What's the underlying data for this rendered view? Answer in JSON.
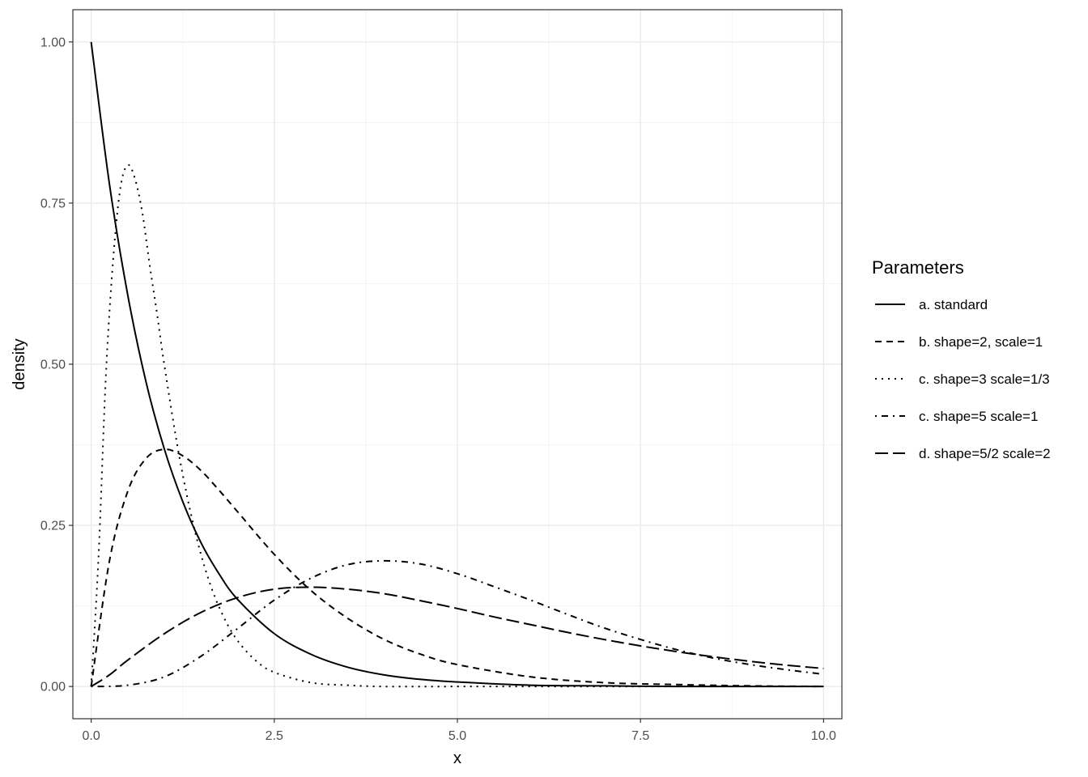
{
  "chart_data": {
    "type": "line",
    "xlabel": "x",
    "ylabel": "density",
    "xlim": [
      -0.25,
      10.25
    ],
    "ylim": [
      -0.05,
      1.05
    ],
    "x_ticks": [
      {
        "value": 0,
        "label": "0.0"
      },
      {
        "value": 2.5,
        "label": "2.5"
      },
      {
        "value": 5,
        "label": "5.0"
      },
      {
        "value": 7.5,
        "label": "7.5"
      },
      {
        "value": 10,
        "label": "10.0"
      }
    ],
    "y_ticks": [
      {
        "value": 0,
        "label": "0.00"
      },
      {
        "value": 0.25,
        "label": "0.25"
      },
      {
        "value": 0.5,
        "label": "0.50"
      },
      {
        "value": 0.75,
        "label": "0.75"
      },
      {
        "value": 1,
        "label": "1.00"
      }
    ],
    "grid": true,
    "legend": {
      "title": "Parameters",
      "placement": "right"
    },
    "series": [
      {
        "name": "a. standard",
        "linetype": "solid",
        "x": [
          0,
          0.25,
          0.5,
          0.75,
          1,
          1.25,
          1.5,
          1.75,
          2,
          2.5,
          3,
          3.5,
          4,
          4.5,
          5,
          6,
          7,
          8,
          9,
          10
        ],
        "y": [
          1.0,
          0.779,
          0.607,
          0.472,
          0.368,
          0.287,
          0.223,
          0.174,
          0.135,
          0.082,
          0.05,
          0.03,
          0.018,
          0.011,
          0.007,
          0.002,
          0.001,
          0.0,
          0.0,
          0.0
        ]
      },
      {
        "name": "b. shape=2, scale=1",
        "linetype": "dashed",
        "x": [
          0,
          0.25,
          0.5,
          0.75,
          1,
          1.25,
          1.5,
          1.75,
          2,
          2.5,
          3,
          3.5,
          4,
          4.5,
          5,
          6,
          7,
          8,
          9,
          10
        ],
        "y": [
          0.0,
          0.195,
          0.303,
          0.354,
          0.368,
          0.358,
          0.335,
          0.304,
          0.271,
          0.205,
          0.149,
          0.106,
          0.073,
          0.05,
          0.034,
          0.015,
          0.006,
          0.003,
          0.001,
          0.0
        ]
      },
      {
        "name": "c. shape=3 scale=1/3",
        "linetype": "dotted",
        "x": [
          0,
          0.1,
          0.2,
          0.3,
          0.4,
          0.5,
          0.6,
          0.7,
          0.8,
          0.9,
          1,
          1.2,
          1.4,
          1.6,
          1.8,
          2,
          2.25,
          2.5,
          3,
          3.5,
          4,
          5,
          6,
          8,
          10
        ],
        "y": [
          0.0,
          0.2,
          0.48,
          0.662,
          0.774,
          0.809,
          0.787,
          0.734,
          0.653,
          0.578,
          0.498,
          0.359,
          0.249,
          0.167,
          0.11,
          0.071,
          0.04,
          0.022,
          0.006,
          0.002,
          0.0,
          0.0,
          0.0,
          0.0,
          0.0
        ]
      },
      {
        "name": "c. shape=5 scale=1",
        "linetype": "dotdash",
        "x": [
          0,
          0.5,
          1,
          1.5,
          2,
          2.5,
          3,
          3.5,
          4,
          4.5,
          5,
          5.5,
          6,
          6.5,
          7,
          7.5,
          8,
          8.5,
          9,
          9.5,
          10
        ],
        "y": [
          0.0,
          0.002,
          0.015,
          0.047,
          0.09,
          0.134,
          0.168,
          0.189,
          0.195,
          0.19,
          0.175,
          0.155,
          0.134,
          0.112,
          0.091,
          0.073,
          0.057,
          0.044,
          0.034,
          0.026,
          0.019
        ]
      },
      {
        "name": "d. shape=5/2 scale=2",
        "linetype": "longdash",
        "x": [
          0,
          0.25,
          0.5,
          1,
          1.5,
          2,
          2.5,
          3,
          3.5,
          4,
          4.5,
          5,
          5.5,
          6,
          6.5,
          7,
          7.5,
          8,
          8.5,
          9,
          9.5,
          10
        ],
        "y": [
          0.0,
          0.018,
          0.041,
          0.082,
          0.115,
          0.138,
          0.151,
          0.154,
          0.151,
          0.144,
          0.133,
          0.121,
          0.108,
          0.096,
          0.084,
          0.073,
          0.063,
          0.054,
          0.046,
          0.039,
          0.033,
          0.028
        ]
      }
    ]
  }
}
